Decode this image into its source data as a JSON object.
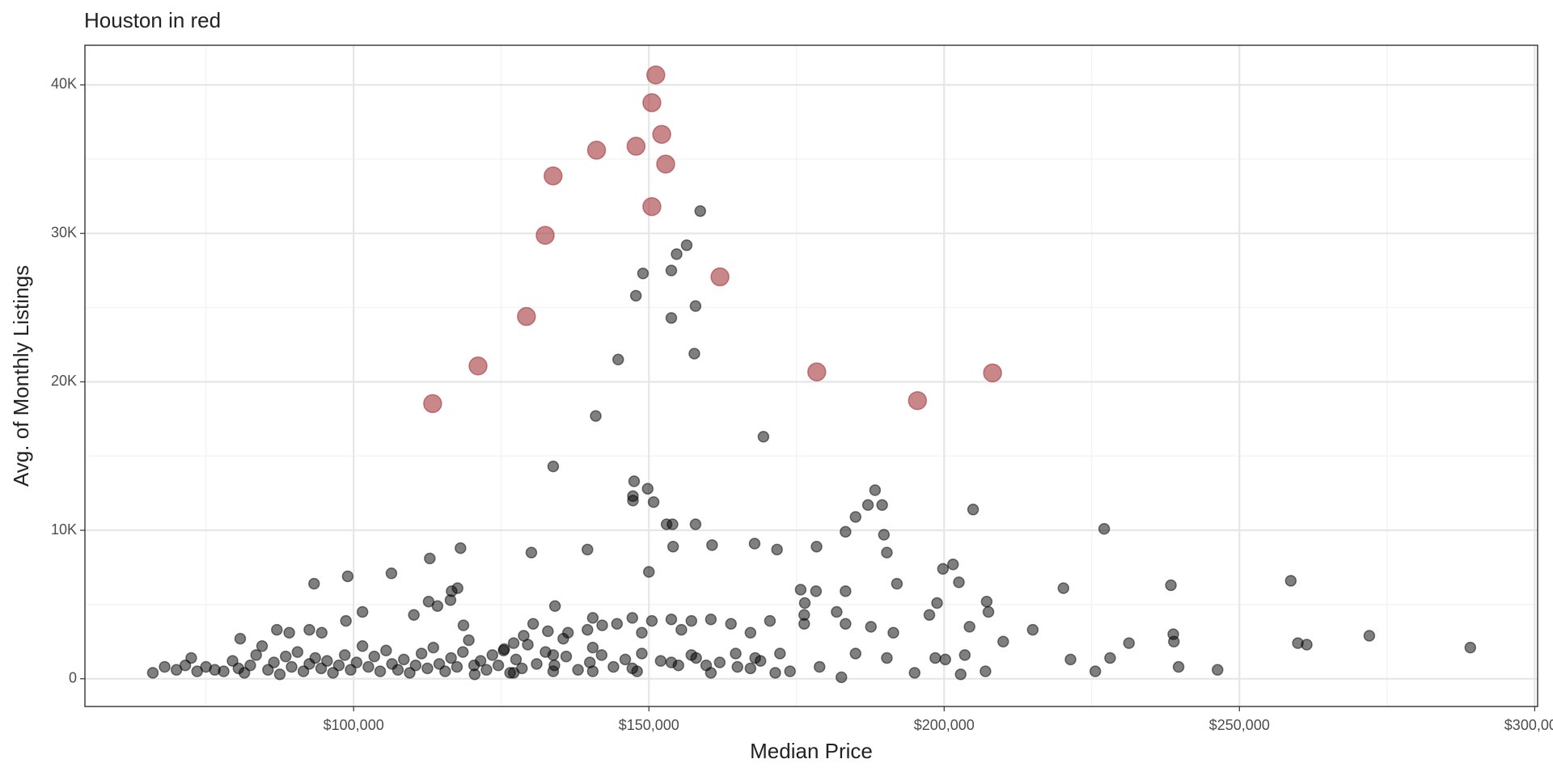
{
  "chart_data": {
    "type": "scatter",
    "title": "Houston in red",
    "x_label": "Median Price",
    "y_label": "Avg. of Monthly Listings",
    "xlim": [
      54500,
      300500
    ],
    "ylim": [
      -1867,
      42667
    ],
    "xticks": [
      {
        "value": 100000,
        "label": "$100,000"
      },
      {
        "value": 150000,
        "label": "$150,000"
      },
      {
        "value": 200000,
        "label": "$200,000"
      },
      {
        "value": 250000,
        "label": "$250,000"
      },
      {
        "value": 300000,
        "label": "$300,000"
      }
    ],
    "yticks": [
      0,
      {
        "value": 10000,
        "label": "10K"
      },
      {
        "value": 20000,
        "label": "20K"
      },
      {
        "value": 30000,
        "label": "30K"
      },
      {
        "value": 40000,
        "label": "40K"
      }
    ],
    "grid": true,
    "minor_grid": true,
    "series": [
      {
        "color": "#000000",
        "alpha": 0.5,
        "x": [
          158700,
          156400,
          154700,
          153800,
          149000,
          147800,
          157900,
          153800,
          157700,
          144800,
          141000,
          169400,
          133800,
          147500,
          149800,
          147300,
          147300,
          150800,
          188300,
          187100,
          189500,
          204900,
          227100,
          153000,
          154000,
          157900,
          185000,
          183300,
          189800,
          167900,
          160700,
          139600,
          154100,
          171700,
          178400,
          190300,
          118100,
          130100,
          112900,
          150000,
          106400,
          99000,
          201500,
          199800,
          93300,
          192000,
          202500,
          220200,
          238400,
          258700,
          175700,
          178300,
          183300,
          117600,
          116600,
          116400,
          112700,
          114200,
          134100,
          198800,
          207200,
          176400,
          207500,
          101500,
          110200,
          181800,
          197500,
          176300,
          140500,
          98700,
          187600,
          183300,
          176300,
          118600,
          204300,
          215000,
          191400,
          238800,
          272000,
          87000,
          89100,
          92500,
          94600,
          80800,
          210000,
          231300,
          238900,
          259900,
          261400,
          289100,
          185000,
          203500,
          221400,
          228100,
          198500,
          200200,
          190300,
          239700,
          246300,
          225600,
          207000,
          195000,
          202800,
          182600,
          130400,
          132900,
          136300,
          139600,
          142100,
          144600,
          150500,
          153800,
          157200,
          160500,
          163900,
          167200,
          170500,
          155500,
          148800,
          147200,
          135500,
          128800,
          127100,
          125400,
          164700,
          157200,
          148800,
          140500,
          133800,
          172200,
          168900,
          159700,
          153800,
          147200,
          140500,
          133800,
          127100,
          120400,
          160500,
          167200,
          173900,
          178900,
          171400,
          66000,
          68000,
          70000,
          71500,
          72500,
          73500,
          75000,
          76500,
          78000,
          79500,
          80500,
          81500,
          82500,
          83500,
          84500,
          85500,
          86500,
          87500,
          88500,
          89500,
          90500,
          91500,
          92500,
          93500,
          94500,
          95500,
          96500,
          97500,
          98500,
          99500,
          100500,
          101500,
          102500,
          103500,
          104500,
          105500,
          106500,
          107500,
          108500,
          109500,
          110500,
          111500,
          112500,
          113500,
          114500,
          115500,
          116500,
          117500,
          118500,
          119500,
          120500,
          121500,
          122500,
          123500,
          124500,
          125500,
          126500,
          127500,
          128500,
          129500,
          131000,
          132500,
          134000,
          136000,
          138000,
          140000,
          142000,
          144000,
          146000,
          148000,
          152000,
          155000,
          158000,
          162000,
          165000,
          168000
        ],
        "values": [
          31500,
          29200,
          28600,
          27500,
          27300,
          25800,
          25100,
          24300,
          21900,
          21500,
          17700,
          16300,
          14300,
          13300,
          12800,
          12300,
          12000,
          11900,
          12700,
          11700,
          11700,
          11400,
          10100,
          10400,
          10400,
          10400,
          10900,
          9900,
          9700,
          9100,
          9000,
          8700,
          8900,
          8700,
          8900,
          8500,
          8800,
          8500,
          8100,
          7200,
          7100,
          6900,
          7700,
          7400,
          6400,
          6400,
          6500,
          6100,
          6300,
          6600,
          6000,
          5900,
          5900,
          6100,
          5900,
          5300,
          5200,
          4900,
          4900,
          5100,
          5200,
          5100,
          4500,
          4500,
          4300,
          4500,
          4300,
          4300,
          4100,
          3900,
          3500,
          3700,
          3700,
          3600,
          3500,
          3300,
          3100,
          3000,
          2900,
          3300,
          3100,
          3300,
          3100,
          2700,
          2500,
          2400,
          2500,
          2400,
          2300,
          2100,
          1700,
          1600,
          1300,
          1400,
          1400,
          1300,
          1400,
          800,
          600,
          500,
          500,
          400,
          300,
          100,
          3700,
          3200,
          3100,
          3300,
          3600,
          3700,
          3900,
          4000,
          3900,
          4000,
          3700,
          3100,
          3900,
          3300,
          3100,
          4100,
          2700,
          2900,
          2400,
          1900,
          1700,
          1600,
          1700,
          2100,
          1600,
          1700,
          1200,
          900,
          1100,
          700,
          500,
          500,
          400,
          900,
          400,
          700,
          500,
          800,
          400,
          400,
          800,
          600,
          900,
          1400,
          500,
          800,
          600,
          500,
          1200,
          700,
          400,
          900,
          1600,
          2200,
          600,
          1100,
          300,
          1500,
          800,
          1800,
          500,
          1000,
          1400,
          700,
          1200,
          400,
          900,
          1600,
          600,
          1100,
          2200,
          800,
          1500,
          500,
          1900,
          1000,
          600,
          1300,
          400,
          900,
          1700,
          700,
          2100,
          1000,
          500,
          1400,
          800,
          1800,
          2600,
          300,
          1200,
          600,
          1600,
          900,
          2000,
          400,
          1300,
          700,
          2300,
          1000,
          1800,
          900,
          1500,
          600,
          1100,
          1600,
          800,
          1300,
          500,
          1200,
          900,
          1400,
          1100,
          800,
          1400
        ]
      },
      {
        "color": "#a3373a",
        "alpha": 0.6,
        "highlight": true,
        "x": [
          113378,
          121070,
          129264,
          132441,
          133779,
          141137,
          147826,
          150502,
          151171,
          152174,
          152843,
          150502,
          162040,
          178428,
          195485,
          208194
        ],
        "values": [
          18533,
          21067,
          24400,
          29867,
          33867,
          35600,
          35867,
          38800,
          40667,
          36667,
          34667,
          31800,
          27067,
          20667,
          18733,
          20600
        ]
      }
    ]
  }
}
